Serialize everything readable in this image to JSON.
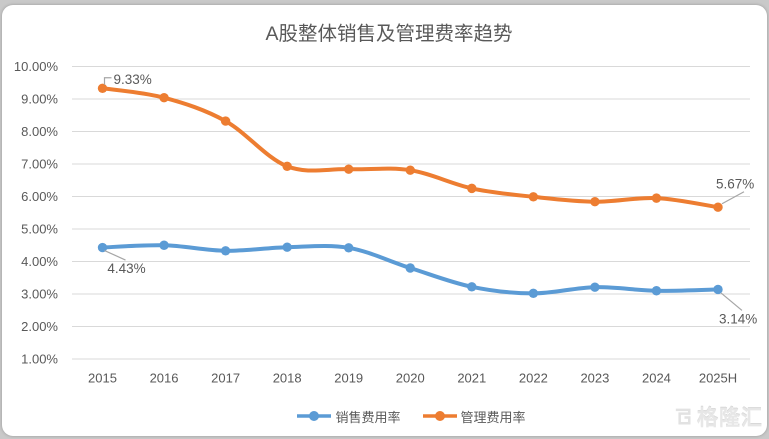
{
  "chart_data": {
    "type": "line",
    "title": "A股整体销售及管理费率趋势",
    "categories": [
      "2015",
      "2016",
      "2017",
      "2018",
      "2019",
      "2020",
      "2021",
      "2022",
      "2023",
      "2024",
      "2025H"
    ],
    "series": [
      {
        "name": "销售费用率",
        "color": "#5B9BD5",
        "values": [
          4.43,
          4.5,
          4.33,
          4.44,
          4.42,
          3.8,
          3.22,
          3.02,
          3.21,
          3.1,
          3.14
        ]
      },
      {
        "name": "管理费用率",
        "color": "#ED7D31",
        "values": [
          9.33,
          9.04,
          8.32,
          6.93,
          6.84,
          6.81,
          6.25,
          5.99,
          5.84,
          5.95,
          5.67
        ]
      }
    ],
    "y_axis": {
      "min": 1,
      "max": 10,
      "step": 1,
      "tick_labels": [
        "10.00%",
        "9.00%",
        "8.00%",
        "7.00%",
        "6.00%",
        "5.00%",
        "4.00%",
        "3.00%",
        "2.00%",
        "1.00%"
      ]
    },
    "point_labels": [
      {
        "series": 1,
        "index": 0,
        "text": "9.33%",
        "placement": "above-right-bracket"
      },
      {
        "series": 0,
        "index": 0,
        "text": "4.43%",
        "placement": "below"
      },
      {
        "series": 1,
        "index": 10,
        "text": "5.67%",
        "placement": "above-left"
      },
      {
        "series": 0,
        "index": 10,
        "text": "3.14%",
        "placement": "below-left"
      }
    ],
    "legend_position": "bottom",
    "grid": true,
    "smooth": true
  },
  "colors": {
    "title_text": "#595959",
    "axis_text": "#595959",
    "label_text": "#595959",
    "gridline": "#d9d9d9",
    "leader_line": "#a6a6a6",
    "card_background": "#ffffff",
    "page_background": "#c9c9c9",
    "watermark": "#e7e7e7"
  },
  "watermark": {
    "text": "格隆汇"
  }
}
